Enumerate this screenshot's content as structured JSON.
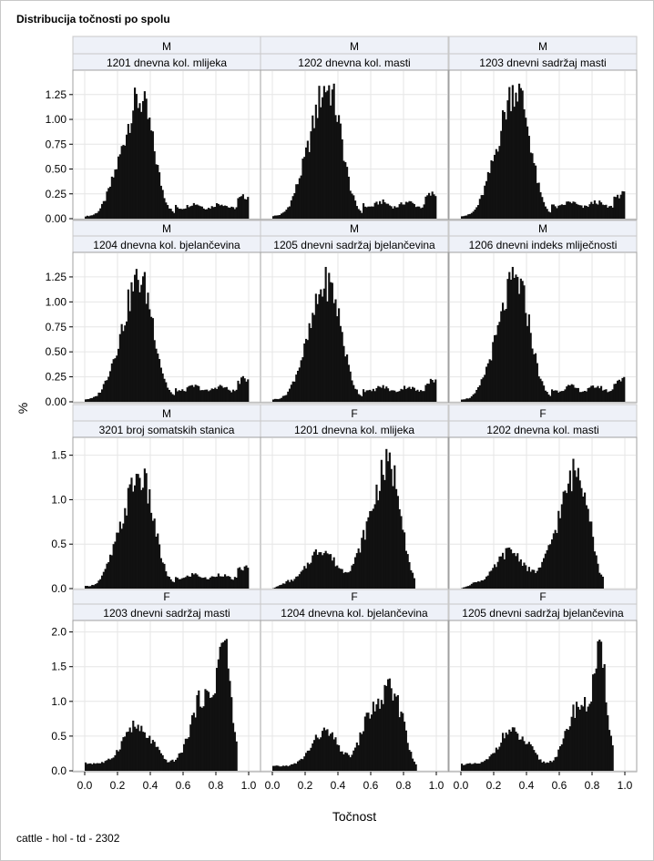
{
  "title": "Distribucija točnosti po spolu",
  "footnote": "cattle - hol - td - 2302",
  "chart_data": {
    "type": "bar",
    "xlabel": "Točnost",
    "ylabel": "%",
    "x_ticks": [
      "0.0",
      "0.2",
      "0.4",
      "0.6",
      "0.8",
      "1.0"
    ],
    "xlim": [
      0,
      1
    ],
    "grid": true,
    "rows": [
      {
        "ylim": [
          0,
          1.45
        ],
        "yticks": [
          0,
          0.25,
          0.5,
          0.75,
          1.0,
          1.25
        ],
        "ytick_labels": [
          "0.00",
          "0.25",
          "0.50",
          "0.75",
          "1.00",
          "1.25"
        ]
      },
      {
        "ylim": [
          0,
          1.45
        ],
        "yticks": [
          0,
          0.25,
          0.5,
          0.75,
          1.0,
          1.25
        ],
        "ytick_labels": [
          "0.00",
          "0.25",
          "0.50",
          "0.75",
          "1.00",
          "1.25"
        ]
      },
      {
        "ylim": [
          0,
          1.65
        ],
        "yticks": [
          0,
          0.5,
          1.0,
          1.5
        ],
        "ytick_labels": [
          "0.0",
          "0.5",
          "1.0",
          "1.5"
        ]
      },
      {
        "ylim": [
          0,
          2.1
        ],
        "yticks": [
          0,
          0.5,
          1.0,
          1.5,
          2.0
        ],
        "ytick_labels": [
          "0.0",
          "0.5",
          "1.0",
          "1.5",
          "2.0"
        ]
      }
    ],
    "panels": [
      {
        "sex": "M",
        "trait": "1201 dnevna kol. mlijeka",
        "shape": "M",
        "peak": 1.32
      },
      {
        "sex": "M",
        "trait": "1202 dnevna kol. masti",
        "shape": "M",
        "peak": 1.36
      },
      {
        "sex": "M",
        "trait": "1203 dnevni sadržaj masti",
        "shape": "M",
        "peak": 1.36
      },
      {
        "sex": "M",
        "trait": "1204 dnevna kol. bjelančevina",
        "shape": "M",
        "peak": 1.33
      },
      {
        "sex": "M",
        "trait": "1205 dnevni sadržaj bjelančevina",
        "shape": "M",
        "peak": 1.35
      },
      {
        "sex": "M",
        "trait": "1206 dnevni indeks mliječnosti",
        "shape": "M",
        "peak": 1.35
      },
      {
        "sex": "M",
        "trait": "3201 broj somatskih stanica",
        "shape": "M",
        "peak": 1.35
      },
      {
        "sex": "F",
        "trait": "1201 dnevna kol. mlijeka",
        "shape": "F1",
        "peak": 1.57
      },
      {
        "sex": "F",
        "trait": "1202 dnevna kol. masti",
        "shape": "F1",
        "peak": 1.46
      },
      {
        "sex": "F",
        "trait": "1203 dnevni sadržaj masti",
        "shape": "F2",
        "peak": 1.9
      },
      {
        "sex": "F",
        "trait": "1204 dnevna kol. bjelančevina",
        "shape": "F3",
        "peak": 1.33
      },
      {
        "sex": "F",
        "trait": "1205 dnevni sadržaj bjelančevina",
        "shape": "F2",
        "peak": 1.89
      }
    ]
  }
}
